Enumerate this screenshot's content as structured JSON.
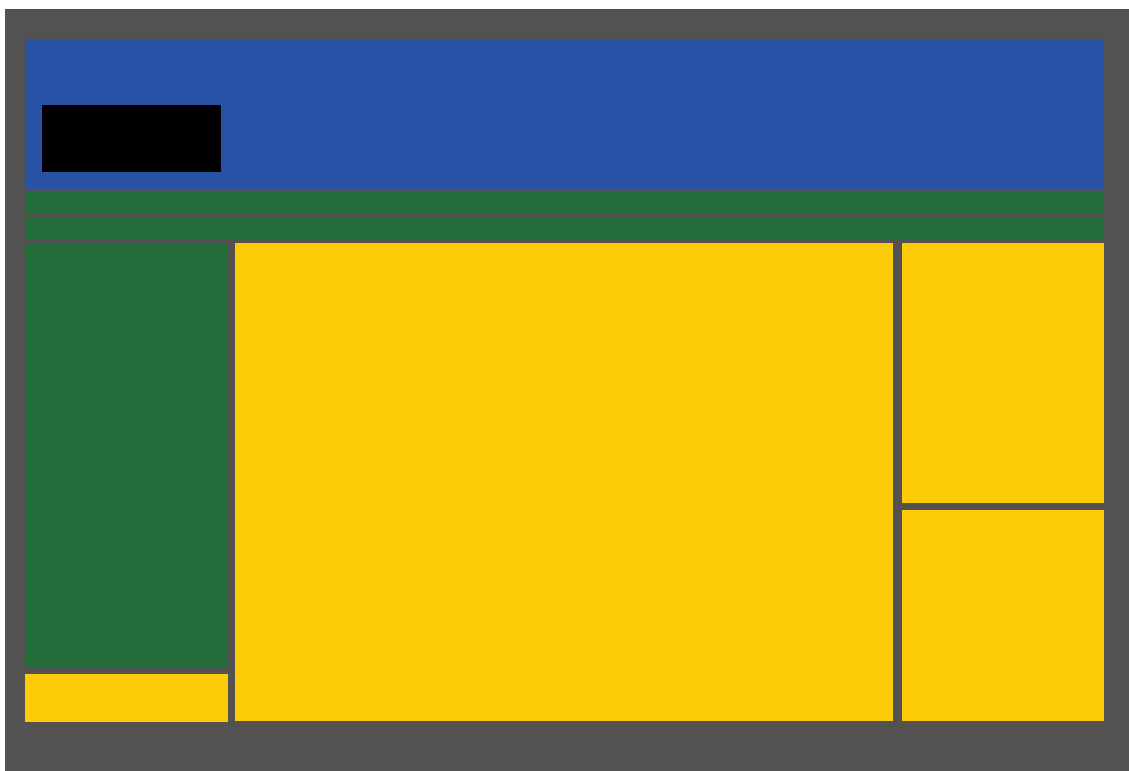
{
  "colors": {
    "background": "#535251",
    "header": "#2752a6",
    "logo": "#000000",
    "nav": "#226d39",
    "sidebar": "#226d39",
    "content": "#fecb09"
  },
  "blocks": [
    {
      "name": "header",
      "role": "header",
      "color_key": "header"
    },
    {
      "name": "logo",
      "role": "logo",
      "color_key": "logo"
    },
    {
      "name": "nav-bar-1",
      "role": "nav",
      "color_key": "nav"
    },
    {
      "name": "nav-bar-2",
      "role": "nav",
      "color_key": "nav"
    },
    {
      "name": "left-sidebar",
      "role": "sidebar",
      "color_key": "sidebar"
    },
    {
      "name": "left-bottom",
      "role": "content",
      "color_key": "content"
    },
    {
      "name": "main-content",
      "role": "content",
      "color_key": "content"
    },
    {
      "name": "right-top",
      "role": "content",
      "color_key": "content"
    },
    {
      "name": "right-bottom",
      "role": "content",
      "color_key": "content"
    }
  ]
}
